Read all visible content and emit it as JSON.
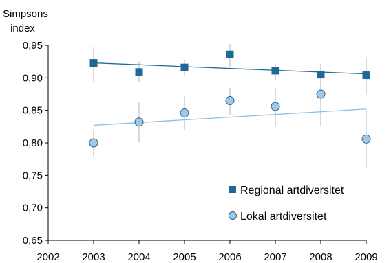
{
  "chart_data": {
    "type": "scatter",
    "ylabel": "Simpsons index",
    "xlabel": "",
    "xlim": [
      2002,
      2009
    ],
    "ylim": [
      0.65,
      0.95
    ],
    "x_ticks": [
      2002,
      2003,
      2004,
      2005,
      2006,
      2007,
      2008,
      2009
    ],
    "x_tick_labels": [
      "2002",
      "2003",
      "2004",
      "2005",
      "2006",
      "2007",
      "2008",
      "2009"
    ],
    "y_ticks": [
      0.65,
      0.7,
      0.75,
      0.8,
      0.85,
      0.9,
      0.95
    ],
    "y_tick_labels": [
      "0,65",
      "0,70",
      "0,75",
      "0,80",
      "0,85",
      "0,90",
      "0,95"
    ],
    "grid": false,
    "legend_position": "bottom-right",
    "series": [
      {
        "name": "Regional artdiversitet",
        "marker": "square",
        "color": "#1f6a94",
        "x": [
          2003,
          2004,
          2005,
          2006,
          2007,
          2008,
          2009
        ],
        "y": [
          0.923,
          0.909,
          0.916,
          0.936,
          0.911,
          0.905,
          0.904
        ],
        "err_low": [
          0.894,
          0.893,
          0.903,
          0.917,
          0.896,
          0.888,
          0.874
        ],
        "err_high": [
          0.948,
          0.925,
          0.928,
          0.952,
          0.921,
          0.922,
          0.932
        ],
        "trend": [
          0.923,
          0.906
        ]
      },
      {
        "name": "Lokal artdiversitet",
        "marker": "circle",
        "color": "#9ec9ea",
        "x": [
          2003,
          2004,
          2005,
          2006,
          2007,
          2008,
          2009
        ],
        "y": [
          0.8,
          0.832,
          0.846,
          0.865,
          0.856,
          0.875,
          0.806
        ],
        "err_low": [
          0.778,
          0.801,
          0.819,
          0.843,
          0.825,
          0.825,
          0.762
        ],
        "err_high": [
          0.82,
          0.862,
          0.872,
          0.885,
          0.885,
          0.91,
          0.852
        ],
        "trend": [
          0.827,
          0.852
        ]
      }
    ]
  }
}
